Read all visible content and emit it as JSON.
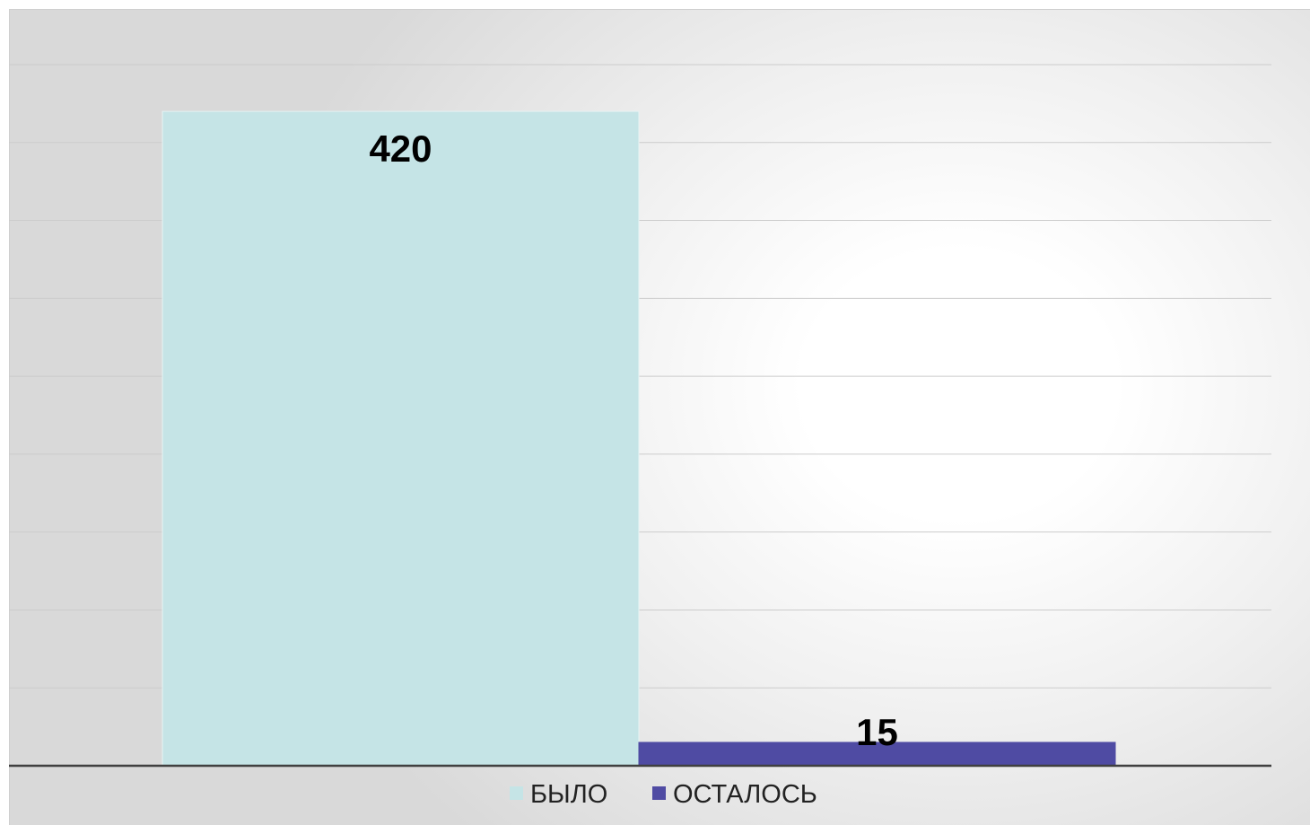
{
  "chart_data": {
    "type": "bar",
    "categories": [
      ""
    ],
    "series": [
      {
        "name": "БЫЛО",
        "values": [
          420
        ],
        "color": "#c5e4e6"
      },
      {
        "name": "ОСТАЛОСЬ",
        "values": [
          15
        ],
        "color": "#4f4ba3"
      }
    ],
    "ylim": [
      0,
      450
    ],
    "y_grid_step": 50,
    "grid": true,
    "legend_position": "bottom",
    "data_labels": [
      "420",
      "15"
    ],
    "title": "",
    "xlabel": "",
    "ylabel": ""
  }
}
